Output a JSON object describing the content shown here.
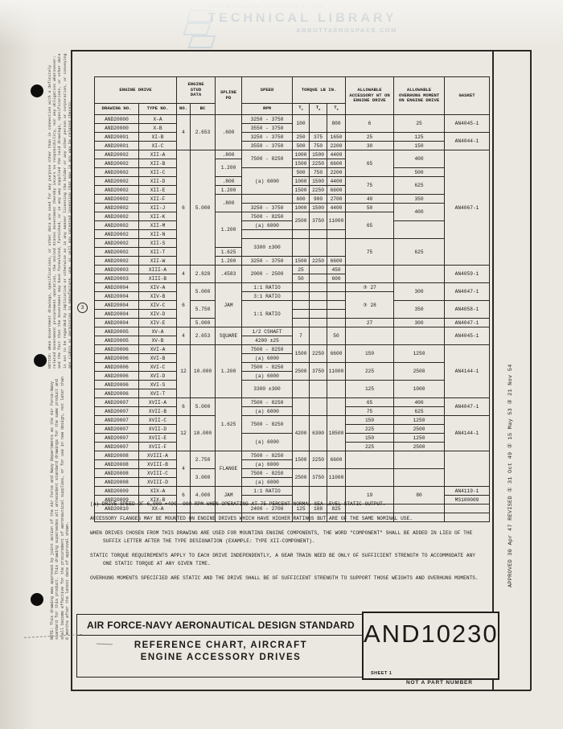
{
  "watermark": {
    "provided_by": "THIS DOCUMENT PROVIDED BY THE",
    "brand": "ABBOTT AEROSPACE",
    "title": "TECHNICAL LIBRARY",
    "url": "ABBOTTAEROSPACE.COM"
  },
  "margins": {
    "left_notice": "NOTICE: When Government drawings, specifications, or other data are used for any purpose other than in connection with a definitely related Government procurement operation, the United States Government thereby incurs no responsibility, nor any obligation whatsoever; and the fact that the Government may have formulated, furnished, or in any way supplied the said drawings, specifications, or other data is not to be regarded by implication or otherwise as in any manner licensing the holder or any other person or corporation, or conveying any rights or permission to manufacture, use, or sell any patented invention that may in any way be related thereto.",
    "left_note": "NOTE: This drawing was approved by joint action of the Air Force and Navy Departments as the Air Force-Navy standard for this product. This drawing supersedes all antecedent standard drawings for the same product and shall become effective for the procurement of aeronautical supplies, or for use in new design, not later than 6 months after the latest date of approval shown.",
    "right_revision": "APPROVED  30 Apr 47  REVISED ①  31 Oct 49  ②  15 May 53  ③  21 Nov 54",
    "row_marker": "3"
  },
  "table": {
    "header": [
      [
        {
          "t": "ENGINE DRIVE",
          "cs": 2
        },
        {
          "t": "ENGINE STUD DATA",
          "cs": 2,
          "w": 30
        },
        {
          "t": "SPLINE PD",
          "rs": 2,
          "w": 28
        },
        {
          "t": "SPEED"
        },
        {
          "t": "TORQUE LB IN.",
          "cs": 3
        },
        {
          "t": "ALLOWABLE ACCESSORY WT ON ENGINE DRIVE",
          "rs": 2,
          "w": 52
        },
        {
          "t": "ALLOWABLE OVERHUNG MOMENT ON ENGINE DRIVE",
          "rs": 2,
          "w": 54
        },
        {
          "t": "GASKET",
          "rs": 2
        }
      ],
      [
        {
          "t": "DRAWING NO."
        },
        {
          "t": "TYPE NO."
        },
        {
          "t": "NO."
        },
        {
          "t": "BC"
        },
        {
          "t": "RPM"
        },
        {
          "t": "T",
          "sub": "c"
        },
        {
          "t": "T",
          "sub": "o"
        },
        {
          "t": "T",
          "sub": "s"
        }
      ]
    ],
    "rows": [
      [
        "AND20000",
        "X-A",
        [
          "4",
          4
        ],
        [
          "2.653",
          4
        ],
        [
          ".600",
          4
        ],
        "3250 - 3750",
        [
          "100",
          2
        ],
        [
          "",
          2
        ],
        [
          "800",
          2
        ],
        [
          "6",
          2
        ],
        [
          "25",
          2
        ],
        [
          "AN4045-1",
          2
        ]
      ],
      [
        "AND20000",
        "X-B",
        null,
        null,
        null,
        "3550 - 3750",
        null,
        null,
        null,
        null,
        null,
        null
      ],
      [
        "AND20001",
        "XI-B",
        null,
        null,
        null,
        "3250 - 3750",
        "250",
        "375",
        "1650",
        "25",
        "125",
        [
          "AN4044-1",
          2
        ]
      ],
      [
        "AND20001",
        "XI-C",
        null,
        null,
        null,
        "3550 - 3750",
        "500",
        "750",
        "2200",
        "30",
        "150",
        null
      ],
      [
        "AND20002",
        "XII-A",
        [
          "6",
          13
        ],
        [
          "5.000",
          13
        ],
        ".800",
        [
          "7500 - 8250",
          2
        ],
        "1000",
        "1500",
        "4400",
        [
          "65",
          3
        ],
        [
          "400",
          2
        ],
        [
          "AN4067-1",
          13
        ]
      ],
      [
        "AND20002",
        "XII-B",
        null,
        null,
        [
          "1.200",
          2
        ],
        null,
        "1500",
        "2250",
        "6600",
        null,
        null,
        null
      ],
      [
        "AND20002",
        "XII-C",
        null,
        null,
        null,
        [
          "(a) 6000",
          3
        ],
        "500",
        "750",
        "2200",
        null,
        "500",
        null
      ],
      [
        "AND20002",
        "XII-D",
        null,
        null,
        ".800",
        null,
        "1000",
        "1500",
        "4400",
        [
          "75",
          2
        ],
        [
          "625",
          2
        ],
        null
      ],
      [
        "AND20002",
        "XII-E",
        null,
        null,
        "1.200",
        null,
        "1500",
        "2250",
        "6600",
        null,
        null,
        null
      ],
      [
        "AND20002",
        "XII-F",
        null,
        null,
        [
          ".800",
          2
        ],
        "",
        "600",
        "900",
        "2700",
        "40",
        "350",
        null
      ],
      [
        "AND20002",
        "XII-J",
        null,
        null,
        null,
        "3250 - 3750",
        "1000",
        "1500",
        "4400",
        "50",
        [
          "400",
          2
        ],
        null
      ],
      [
        "AND20002",
        "XII-K",
        null,
        null,
        [
          "1.200",
          4
        ],
        "7500 - 8250",
        [
          "2500",
          2
        ],
        [
          "3750",
          2
        ],
        [
          "11000",
          2
        ],
        [
          "65",
          3
        ],
        null,
        null
      ],
      [
        "AND20002",
        "XII-M",
        null,
        null,
        null,
        "(a) 6000",
        null,
        null,
        null,
        null,
        [
          "",
          2
        ],
        null
      ],
      [
        "AND20002",
        "XII-N",
        null,
        null,
        null,
        "",
        "",
        "",
        "",
        null,
        null,
        null
      ],
      [
        "AND20002",
        "XII-S",
        null,
        null,
        null,
        [
          "3300 ±300",
          2
        ],
        [
          "",
          2
        ],
        [
          "",
          2
        ],
        [
          "",
          2
        ],
        [
          "75",
          3
        ],
        [
          "625",
          3
        ],
        null
      ],
      [
        "AND20002",
        "XII-T",
        null,
        null,
        "1.625",
        null,
        null,
        null,
        null,
        null,
        null,
        null
      ],
      [
        "AND20002",
        "XII-W",
        null,
        null,
        "1.200",
        "3250 - 3750",
        "1500",
        "2250",
        "6600",
        null,
        null,
        null
      ],
      [
        "AND20003",
        "XIII-A",
        [
          "4",
          2
        ],
        [
          "2.828",
          2
        ],
        [
          ".4583",
          2
        ],
        [
          "2000 - 2500",
          2
        ],
        "25",
        "",
        "450",
        [
          "",
          2
        ],
        [
          "",
          2
        ],
        [
          "AN4059-1",
          2
        ]
      ],
      [
        "AND20003",
        "XIII-B",
        null,
        null,
        null,
        null,
        "50",
        "",
        "600",
        null,
        null,
        null
      ],
      [
        "AND20004",
        "XIV-A",
        [
          "6",
          5
        ],
        [
          "5.000",
          2
        ],
        [
          "JAM",
          5
        ],
        "1:1 RATIO",
        "",
        "",
        "",
        "③ 27",
        [
          "300",
          2
        ],
        [
          "AN4047-1",
          2
        ]
      ],
      [
        "AND20004",
        "XIV-B",
        null,
        null,
        null,
        "3:1 RATIO",
        "",
        "",
        "",
        [
          "③ 28",
          3
        ],
        null,
        null
      ],
      [
        "AND20004",
        "XIV-C",
        null,
        [
          "5.750",
          2
        ],
        null,
        [
          "1:1 RATIO",
          3
        ],
        "",
        "",
        "",
        null,
        [
          "350",
          2
        ],
        [
          "AN4058-1",
          2
        ]
      ],
      [
        "AND20004",
        "XIV-D",
        null,
        null,
        null,
        null,
        "",
        "",
        "",
        null,
        null,
        null
      ],
      [
        "AND20004",
        "XIV-E",
        null,
        "5.000",
        null,
        null,
        "",
        "",
        "",
        "27",
        "300",
        "AN4047-1"
      ],
      [
        "AND20005",
        "XV-A",
        [
          "4",
          2
        ],
        [
          "2.653",
          2
        ],
        [
          "SQUARE",
          2
        ],
        "1/2 CSHAFT",
        [
          "7",
          2
        ],
        [
          "",
          2
        ],
        [
          "50",
          2
        ],
        [
          "",
          2
        ],
        [
          "",
          2
        ],
        [
          "AN4045-1",
          2
        ]
      ],
      [
        "AND20005",
        "XV-B",
        null,
        null,
        null,
        "4200 ±25",
        null,
        null,
        null,
        null,
        null,
        null
      ],
      [
        "AND20006",
        "XVI-A",
        [
          "12",
          6
        ],
        [
          "10.000",
          6
        ],
        [
          "1.200",
          6
        ],
        "7500 - 8250",
        [
          "1500",
          2
        ],
        [
          "2250",
          2
        ],
        [
          "6600",
          2
        ],
        [
          "150",
          2
        ],
        [
          "1250",
          2
        ],
        [
          "AN4144-1",
          6
        ]
      ],
      [
        "AND20006",
        "XVI-B",
        null,
        null,
        null,
        "(a) 6000",
        null,
        null,
        null,
        null,
        null,
        null
      ],
      [
        "AND20006",
        "XVI-C",
        null,
        null,
        null,
        "7500 - 8250",
        [
          "2500",
          2
        ],
        [
          "3750",
          2
        ],
        [
          "11000",
          2
        ],
        [
          "225",
          2
        ],
        [
          "2500",
          2
        ],
        null
      ],
      [
        "AND20006",
        "XVI-D",
        null,
        null,
        null,
        "(a) 6000",
        null,
        null,
        null,
        null,
        null,
        null
      ],
      [
        "AND20006",
        "XVI-S",
        null,
        null,
        null,
        [
          "3300 ±300",
          2
        ],
        [
          "",
          2
        ],
        [
          "",
          2
        ],
        [
          "",
          2
        ],
        [
          "125",
          2
        ],
        [
          "1000",
          2
        ],
        null
      ],
      [
        "AND20006",
        "XVI-T",
        null,
        null,
        null,
        null,
        null,
        null,
        null,
        null,
        null,
        null
      ],
      [
        "AND20007",
        "XVII-A",
        [
          "6",
          2
        ],
        [
          "5.000",
          2
        ],
        [
          "1.625",
          6
        ],
        "7500 - 8250",
        [
          "",
          2
        ],
        [
          "",
          2
        ],
        [
          "",
          2
        ],
        "65",
        "400",
        [
          "AN4047-1",
          2
        ]
      ],
      [
        "AND20007",
        "XVII-B",
        null,
        null,
        null,
        "(a) 6000",
        null,
        null,
        null,
        "75",
        "625",
        null
      ],
      [
        "AND20007",
        "XVII-C",
        [
          "12",
          4
        ],
        [
          "10.000",
          4
        ],
        null,
        [
          "7500 - 8250",
          2
        ],
        [
          "4200",
          4
        ],
        [
          "6300",
          4
        ],
        [
          "18500",
          4
        ],
        "150",
        "1250",
        [
          "AN4144-1",
          4
        ]
      ],
      [
        "AND20007",
        "XVII-D",
        null,
        null,
        null,
        null,
        null,
        null,
        null,
        "225",
        "2500",
        null
      ],
      [
        "AND20007",
        "XVII-E",
        null,
        null,
        null,
        [
          "(a) 6000",
          2
        ],
        null,
        null,
        null,
        "150",
        "1250",
        null
      ],
      [
        "AND20007",
        "XVII-F",
        null,
        null,
        null,
        null,
        null,
        null,
        null,
        "225",
        "2500",
        null
      ],
      [
        "AND20008",
        "XVIII-A",
        [
          "4",
          4
        ],
        [
          "2.750",
          2
        ],
        [
          "FLANGE",
          4
        ],
        "7500 - 8250",
        [
          "1500",
          2
        ],
        [
          "2250",
          2
        ],
        [
          "6600",
          2
        ],
        [
          "",
          2
        ],
        [
          "",
          2
        ],
        [
          "",
          4
        ]
      ],
      [
        "AND20008",
        "XVIII-B",
        null,
        null,
        null,
        "(a) 6000",
        null,
        null,
        null,
        null,
        null,
        null
      ],
      [
        "AND20008",
        "XVIII-C",
        null,
        [
          "3.000",
          2
        ],
        null,
        "7500 - 8250",
        [
          "2500",
          2
        ],
        [
          "3750",
          2
        ],
        [
          "11000",
          2
        ],
        [
          "",
          2
        ],
        [
          "",
          2
        ],
        null
      ],
      [
        "AND20008",
        "XVIII-D",
        null,
        null,
        null,
        "(a) 6000",
        null,
        null,
        null,
        null,
        null,
        null
      ],
      [
        "AND20009",
        "XIX-A",
        [
          "6",
          2
        ],
        [
          "4.000",
          2
        ],
        [
          "JAM",
          2
        ],
        "1:1 RATIO",
        [
          "",
          2
        ],
        [
          "",
          2
        ],
        [
          "",
          2
        ],
        [
          "19",
          2
        ],
        [
          "80",
          2
        ],
        "AN4119-1"
      ],
      [
        "AND20009",
        "XIX-B",
        null,
        null,
        null,
        "",
        null,
        null,
        null,
        null,
        null,
        "MS100009"
      ],
      [
        "AND20010",
        "XX-A",
        "",
        "",
        "",
        "2400 - 2700",
        "125",
        "188",
        "825",
        "",
        "",
        ""
      ],
      [
        "",
        "",
        "",
        "",
        "",
        "",
        "",
        "",
        "",
        "",
        "",
        ""
      ]
    ]
  },
  "notes": [
    "(a)  DRIVE SPEED OF 6,000 +400 -000 RPM WHEN OPERATING AT 75 PERCENT NORMAL SEA LEVEL STATIC OUTPUT.",
    "ACCESSORY FLANGES MAY BE MOUNTED ON ENGINE DRIVES WHICH HAVE HIGHER RATINGS BUT ARE OF THE SAME NOMINAL USE.",
    "WHEN DRIVES CHOSEN FROM THIS DRAWING ARE USED FOR MOUNTING ENGINE COMPONENTS, THE WORD \"COMPONENT\" SHALL BE ADDED IN LIEU OF THE SUFFIX LETTER AFTER THE TYPE DESIGNATION (EXAMPLE:  TYPE XII-COMPONENT).",
    "STATIC TORQUE REQUIREMENTS APPLY TO EACH DRIVE INDEPENDENTLY, A GEAR TRAIN NEED BE ONLY OF SUFFICIENT STRENGTH TO ACCOMMODATE ANY ONE STATIC TORQUE AT ANY GIVEN TIME.",
    "OVERHUNG MOMENTS SPECIFIED ARE STATIC AND THE DRIVE SHALL BE OF SUFFICIENT STRENGTH TO SUPPORT THOSE WEIGHTS AND OVERHUNG MOMENTS."
  ],
  "title_block": {
    "standard": "AIR FORCE-NAVY AERONAUTICAL DESIGN STANDARD",
    "title_line1": "REFERENCE CHART,  AIRCRAFT",
    "title_line2": "ENGINE  ACCESSORY  DRIVES",
    "number": "AND10230",
    "sheet": "SHEET 1",
    "note": "NOT A PART NUMBER"
  }
}
